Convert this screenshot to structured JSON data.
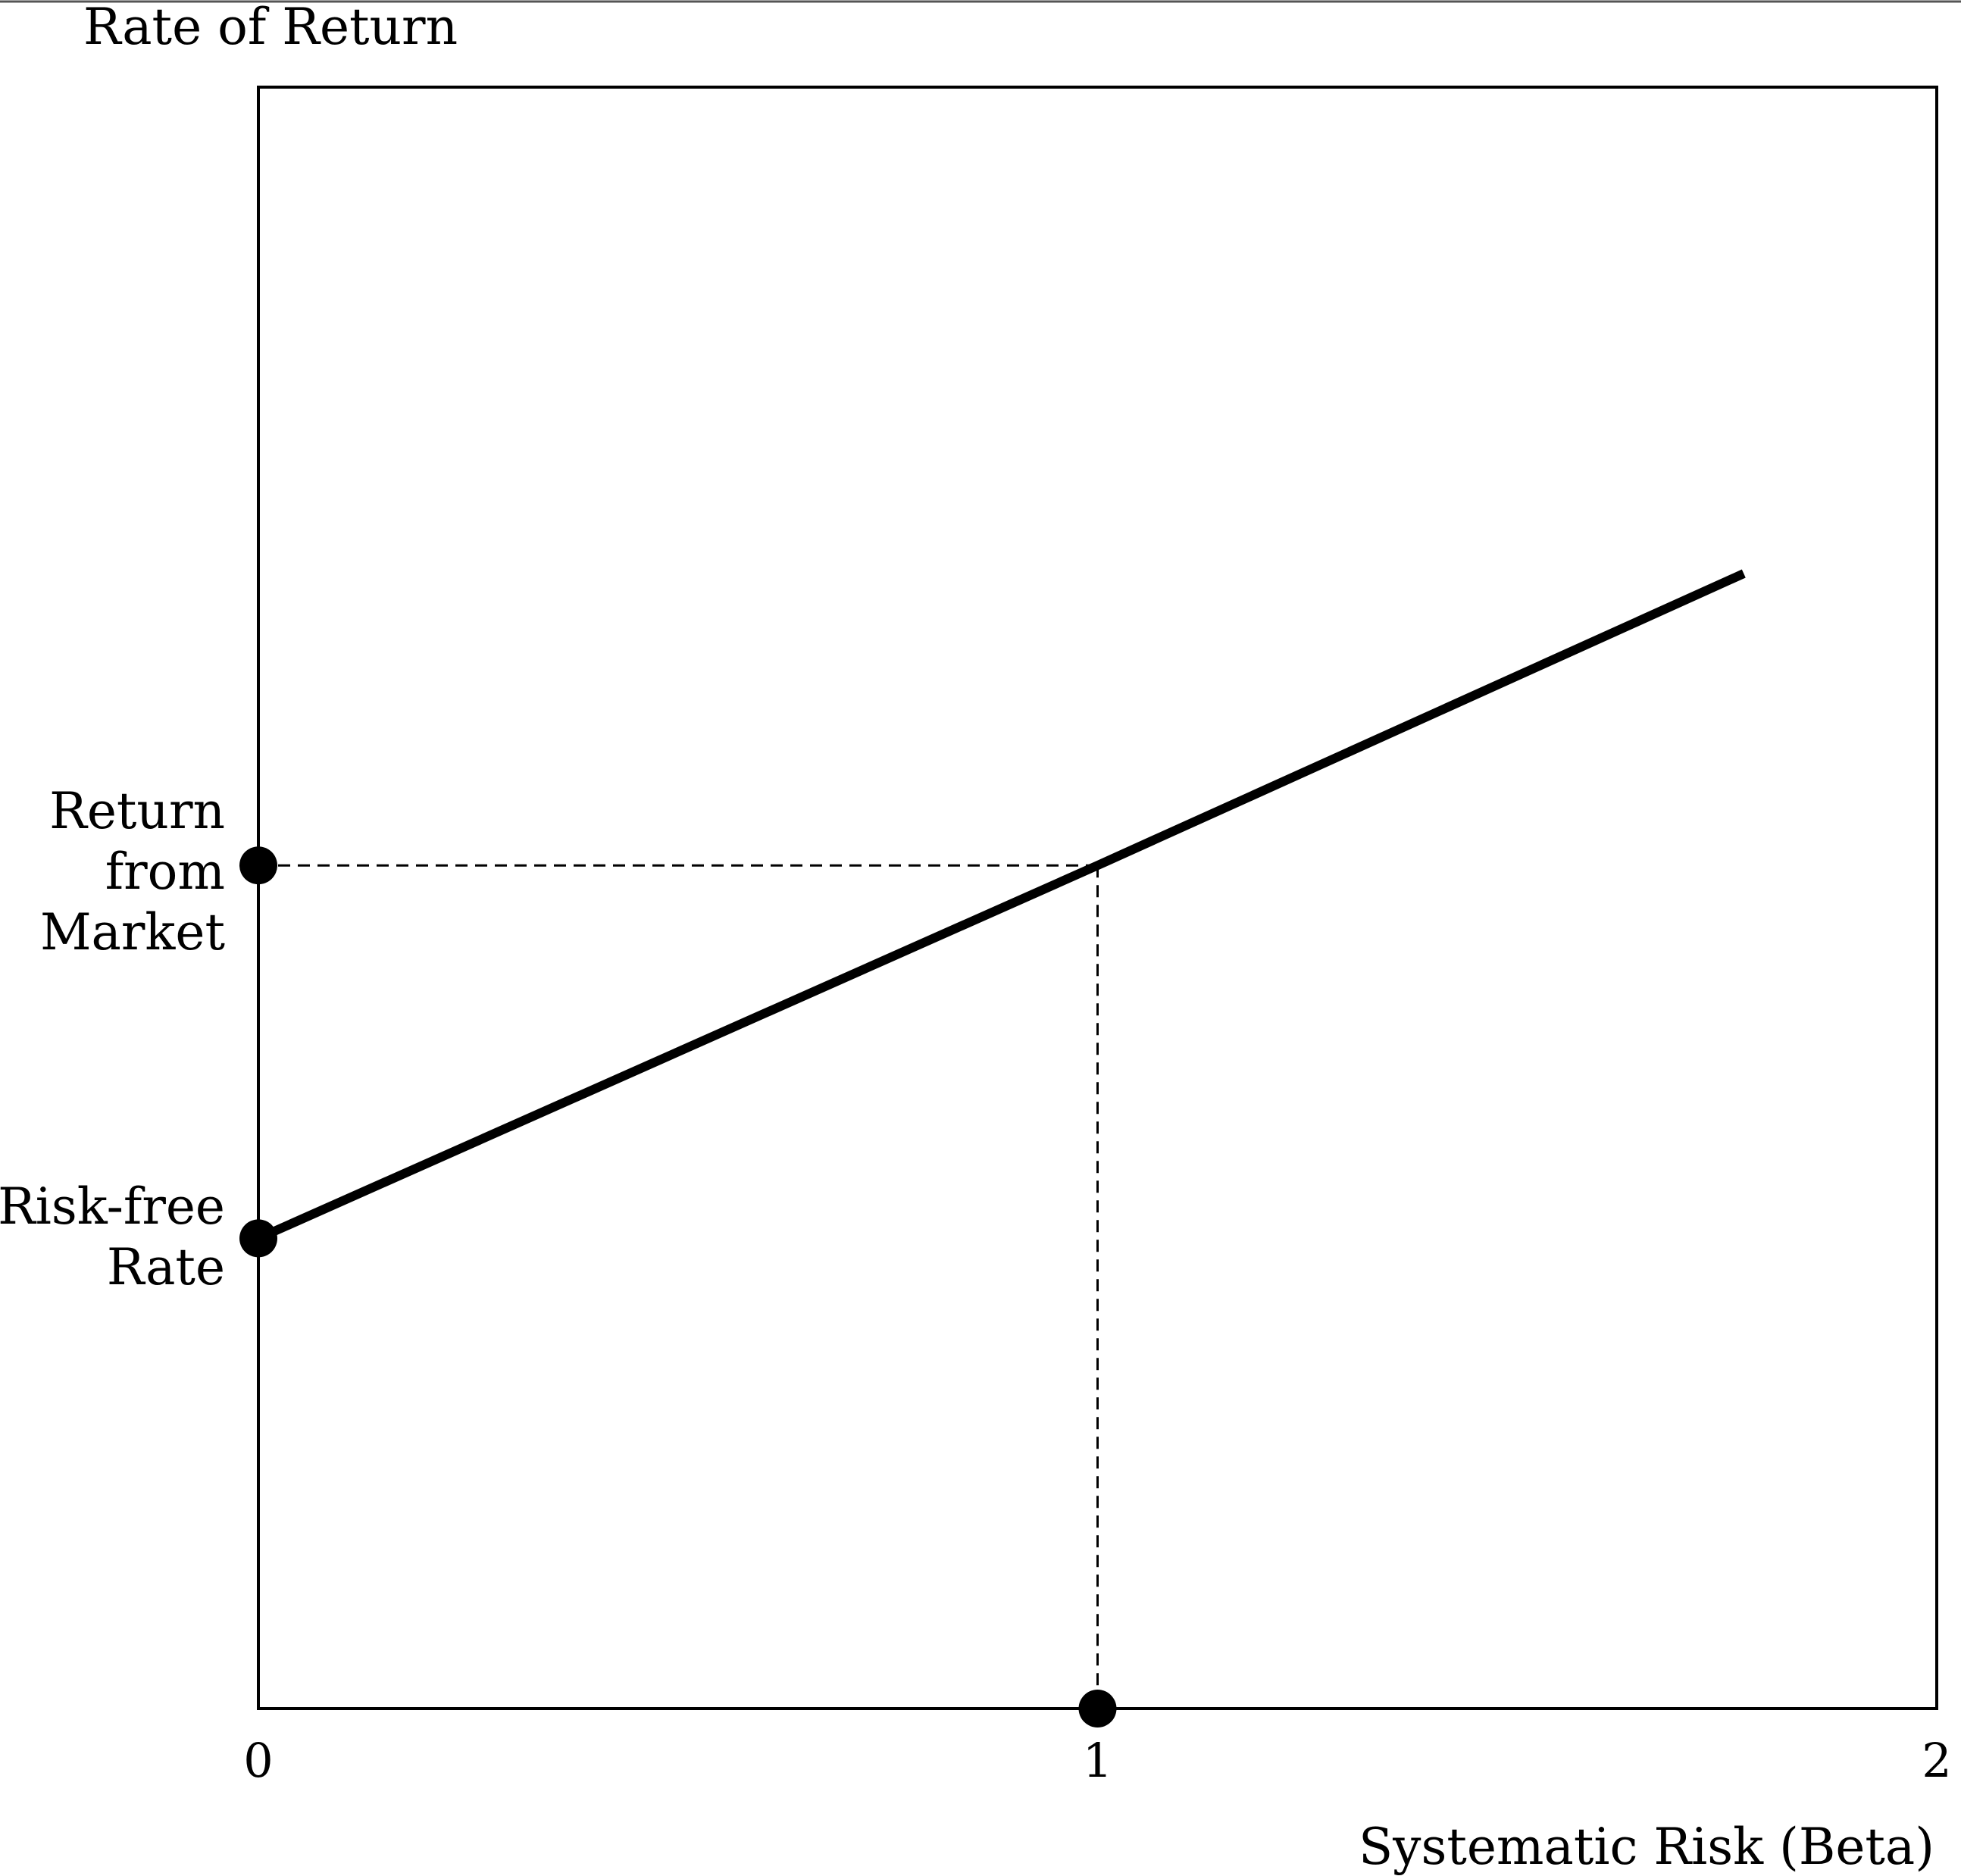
{
  "chart_data": {
    "type": "line",
    "ylabel": "Rate of Return",
    "xlabel": "Systematic Risk (Beta)",
    "x_ticks": [
      "0",
      "1",
      "2"
    ],
    "xlim": [
      0,
      2
    ],
    "ylim": [
      0,
      1
    ],
    "line": {
      "x": [
        0,
        1,
        1.77
      ],
      "y": [
        0.29,
        0.52,
        0.7
      ]
    },
    "reference_lines": {
      "market_beta": 1,
      "market_return": 0.52
    },
    "points": [
      {
        "label": "Risk-free Rate",
        "x": 0,
        "y": 0.29
      },
      {
        "label": "Return from Market",
        "x": 0,
        "y": 0.52
      },
      {
        "label": "",
        "x": 1,
        "y": 0
      }
    ],
    "annotations": {
      "market_label": [
        "Return",
        "from",
        "Market"
      ],
      "riskfree_label": [
        "Risk-free",
        "Rate"
      ]
    },
    "grid": false,
    "legend": "none"
  }
}
